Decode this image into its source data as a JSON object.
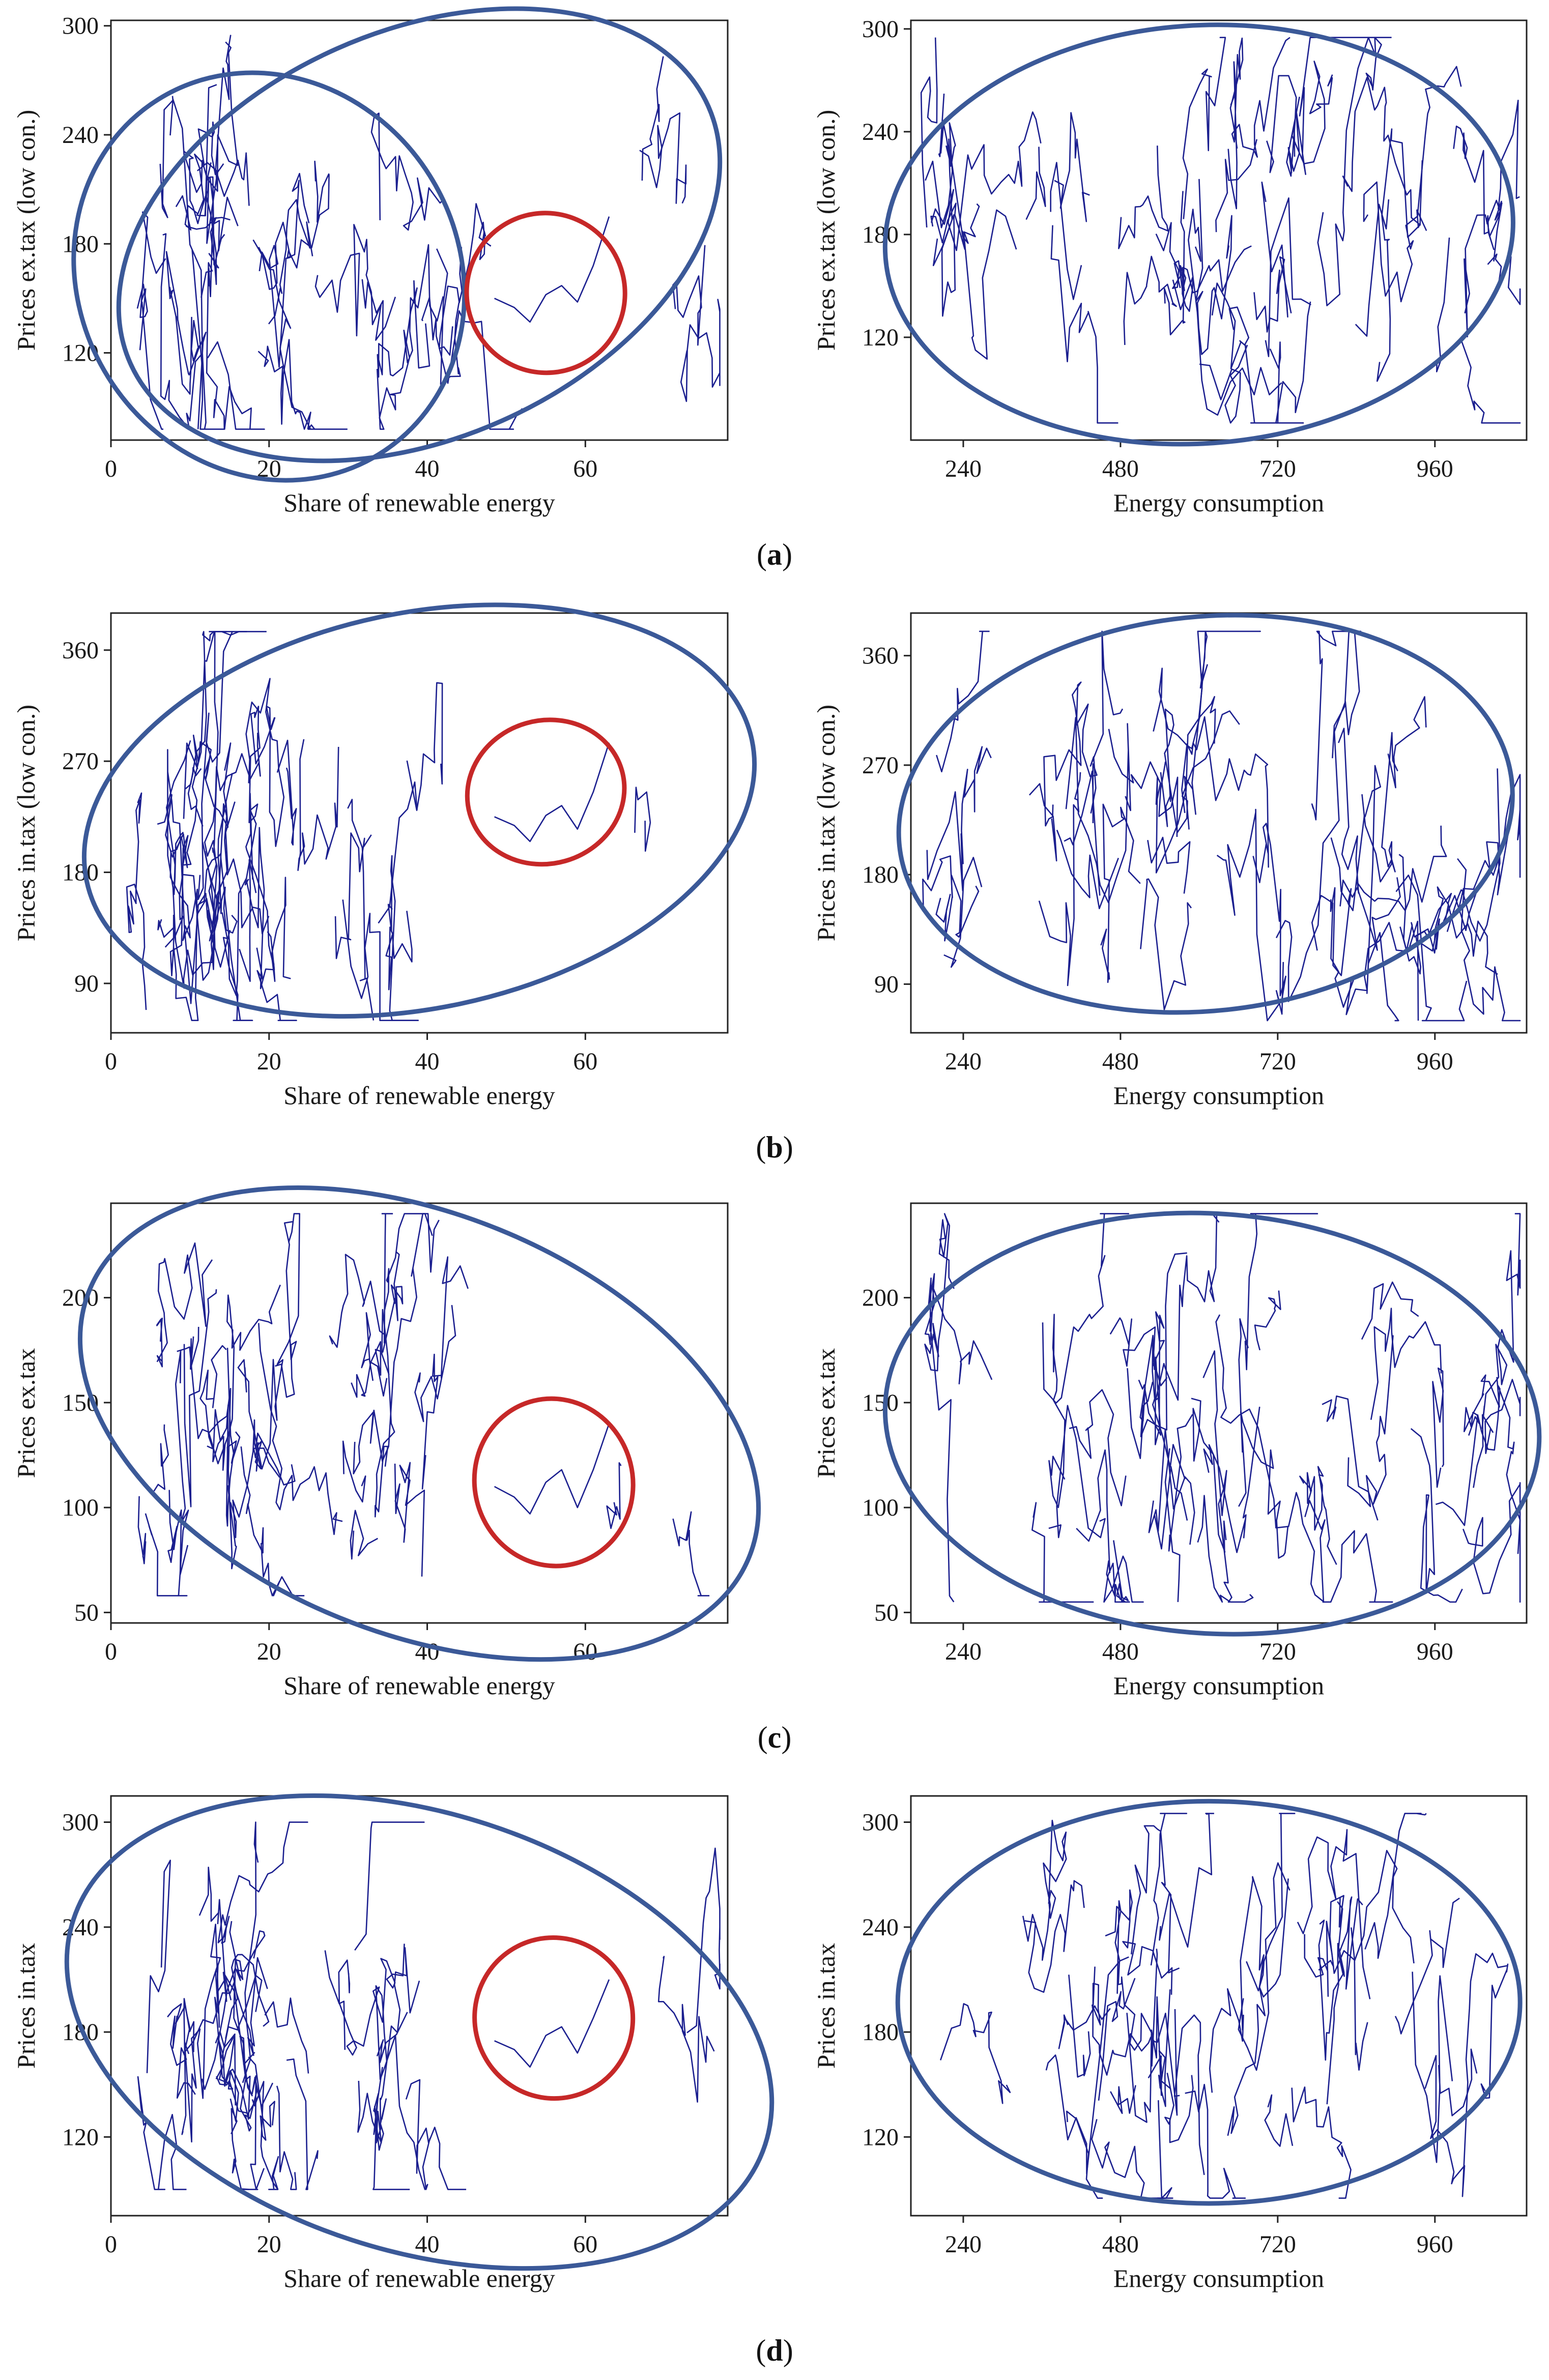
{
  "figure": {
    "colors": {
      "series": "#1b1f8f",
      "cluster": "#3b5998",
      "highlight": "#c62828",
      "axis": "#222222"
    }
  },
  "panels": [
    {
      "caption_letter": "a",
      "charts": [
        {
          "type": "line",
          "xlabel": "Share of renewable energy",
          "ylabel": "Prices ex.tax (low con.)",
          "xlim": [
            0,
            78
          ],
          "ylim": [
            72,
            303
          ],
          "xticks": [
            0,
            20,
            40,
            60
          ],
          "yticks": [
            120,
            180,
            240,
            300
          ],
          "series_profile": "renew",
          "y_range": [
            78,
            295
          ],
          "seed": 11,
          "clusters": [
            {
              "color": "cluster",
              "cx": 20,
              "cy": 162,
              "rx": 24,
              "ry": 115,
              "rot": -32
            },
            {
              "color": "cluster",
              "cx": 39,
              "cy": 185,
              "rx": 40,
              "ry": 112,
              "rot": -24
            },
            {
              "color": "highlight",
              "cx": 55,
              "cy": 153,
              "rx": 10,
              "ry": 44,
              "rot": -18
            }
          ]
        },
        {
          "type": "line",
          "xlabel": "Energy consumption",
          "ylabel": "Prices ex.tax (low con.)",
          "xlim": [
            160,
            1100
          ],
          "ylim": [
            60,
            305
          ],
          "xticks": [
            240,
            480,
            720,
            960
          ],
          "yticks": [
            120,
            180,
            240,
            300
          ],
          "series_profile": "energy",
          "y_range": [
            70,
            295
          ],
          "seed": 23,
          "clusters": [
            {
              "color": "cluster",
              "cx": 600,
              "cy": 180,
              "rx": 480,
              "ry": 122,
              "rot": -4
            }
          ]
        }
      ]
    },
    {
      "caption_letter": "b",
      "charts": [
        {
          "type": "line",
          "xlabel": "Share of renewable energy",
          "ylabel": "Prices in.tax (low con.)",
          "xlim": [
            0,
            78
          ],
          "ylim": [
            50,
            390
          ],
          "xticks": [
            0,
            20,
            40,
            60
          ],
          "yticks": [
            90,
            180,
            270,
            360
          ],
          "series_profile": "renew",
          "y_range": [
            60,
            375
          ],
          "seed": 37,
          "clusters": [
            {
              "color": "cluster",
              "cx": 39,
              "cy": 230,
              "rx": 43,
              "ry": 160,
              "rot": -12
            },
            {
              "color": "highlight",
              "cx": 55,
              "cy": 245,
              "rx": 10,
              "ry": 58,
              "rot": -16
            }
          ]
        },
        {
          "type": "line",
          "xlabel": "Energy consumption",
          "ylabel": "Prices in.tax (low con.)",
          "xlim": [
            160,
            1100
          ],
          "ylim": [
            50,
            395
          ],
          "xticks": [
            240,
            480,
            720,
            960
          ],
          "yticks": [
            90,
            180,
            270,
            360
          ],
          "series_profile": "energy",
          "y_range": [
            60,
            380
          ],
          "seed": 41,
          "clusters": [
            {
              "color": "cluster",
              "cx": 610,
              "cy": 230,
              "rx": 470,
              "ry": 162,
              "rot": -6
            }
          ]
        }
      ]
    },
    {
      "caption_letter": "c",
      "charts": [
        {
          "type": "line",
          "xlabel": "Share of renewable energy",
          "ylabel": "Prices ex.tax",
          "xlim": [
            0,
            78
          ],
          "ylim": [
            45,
            245
          ],
          "xticks": [
            0,
            20,
            40,
            60
          ],
          "yticks": [
            50,
            100,
            150,
            200
          ],
          "series_profile": "renew",
          "y_range": [
            58,
            240
          ],
          "seed": 53,
          "clusters": [
            {
              "color": "cluster",
              "cx": 39,
              "cy": 140,
              "rx": 45,
              "ry": 100,
              "rot": 22
            },
            {
              "color": "highlight",
              "cx": 56,
              "cy": 112,
              "rx": 10,
              "ry": 40,
              "rot": -14
            }
          ]
        },
        {
          "type": "line",
          "xlabel": "Energy consumption",
          "ylabel": "Prices ex.tax",
          "xlim": [
            160,
            1100
          ],
          "ylim": [
            45,
            245
          ],
          "xticks": [
            240,
            480,
            720,
            960
          ],
          "yticks": [
            50,
            100,
            150,
            200
          ],
          "series_profile": "energy",
          "y_range": [
            55,
            240
          ],
          "seed": 67,
          "clusters": [
            {
              "color": "cluster",
              "cx": 620,
              "cy": 140,
              "rx": 500,
              "ry": 100,
              "rot": 4
            }
          ]
        }
      ]
    },
    {
      "caption_letter": "d",
      "charts": [
        {
          "type": "line",
          "xlabel": "Share of renewable energy",
          "ylabel": "Prices in.tax",
          "xlim": [
            0,
            78
          ],
          "ylim": [
            75,
            315
          ],
          "xticks": [
            0,
            20,
            40,
            60
          ],
          "yticks": [
            120,
            180,
            240,
            300
          ],
          "series_profile": "renew",
          "y_range": [
            90,
            300
          ],
          "seed": 71,
          "clusters": [
            {
              "color": "cluster",
              "cx": 39,
              "cy": 180,
              "rx": 46,
              "ry": 125,
              "rot": 18
            },
            {
              "color": "highlight",
              "cx": 56,
              "cy": 188,
              "rx": 10,
              "ry": 46,
              "rot": -12
            }
          ]
        },
        {
          "type": "line",
          "xlabel": "Energy consumption",
          "ylabel": "Prices in.tax",
          "xlim": [
            160,
            1100
          ],
          "ylim": [
            75,
            315
          ],
          "xticks": [
            240,
            480,
            720,
            960
          ],
          "yticks": [
            120,
            180,
            240,
            300
          ],
          "series_profile": "energy",
          "y_range": [
            85,
            305
          ],
          "seed": 89,
          "clusters": [
            {
              "color": "cluster",
              "cx": 615,
              "cy": 197,
              "rx": 475,
              "ry": 115,
              "rot": 0
            }
          ]
        }
      ]
    }
  ],
  "highlight_path": {
    "x": [
      48.5,
      51,
      53,
      55,
      57,
      59,
      61,
      63
    ],
    "panels": {
      "a": [
        150,
        145,
        137,
        152,
        157,
        148,
        168,
        195
      ],
      "b": [
        225,
        218,
        205,
        226,
        234,
        215,
        245,
        285
      ],
      "c": [
        110,
        105,
        97,
        112,
        118,
        100,
        118,
        140
      ],
      "d": [
        175,
        170,
        160,
        178,
        183,
        168,
        188,
        210
      ]
    }
  }
}
